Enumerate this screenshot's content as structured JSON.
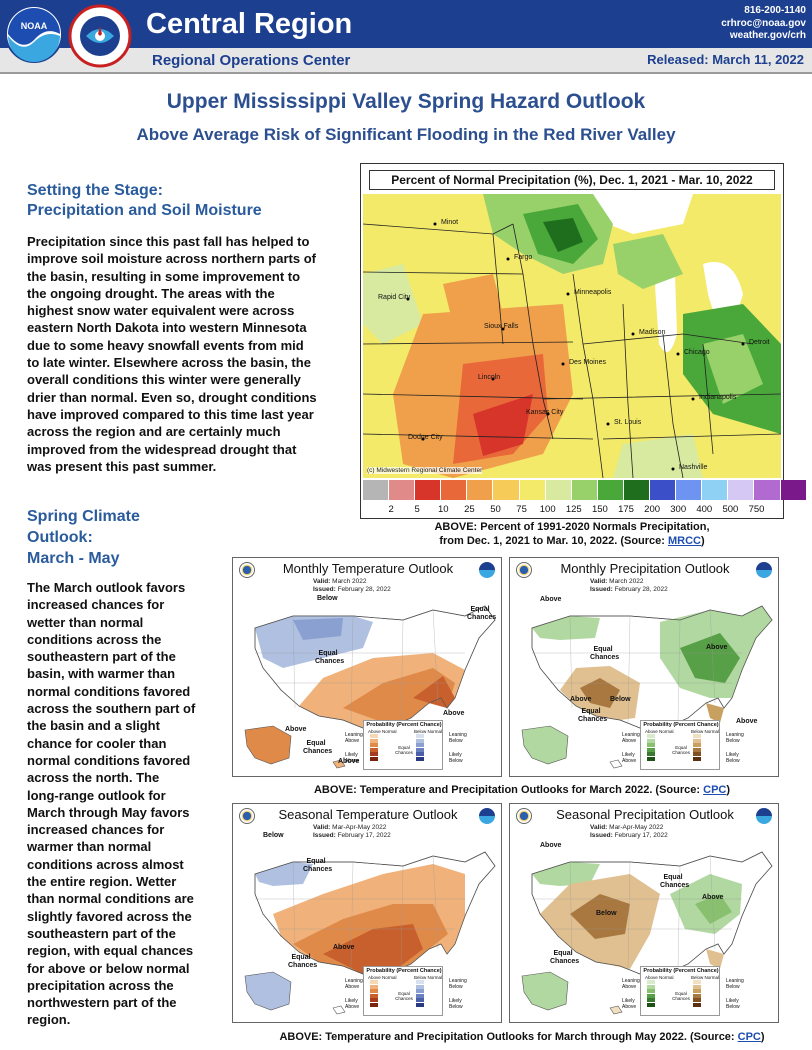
{
  "header": {
    "agency_logo": "noaa-logo",
    "service_logo": "national-weather-service-logo",
    "region_title": "Central Region",
    "center_name": "Regional Operations Center",
    "phone": "816-200-1140",
    "email": "crhroc@noaa.gov",
    "website": "weather.gov/crh",
    "released": "Released:  March 11, 2022",
    "colors": {
      "banner": "#1c3f8f",
      "subbar": "#e6e6e6"
    }
  },
  "title": "Upper Mississippi Valley Spring Hazard Outlook",
  "subtitle": "Above Average Risk of Significant Flooding in the Red River Valley",
  "section1": {
    "heading_line1": "Setting the Stage:",
    "heading_line2": "Precipitation and Soil Moisture",
    "lines": [
      "Precipitation since this past fall has helped to",
      "improve soil moisture across northern parts of",
      "the basin, resulting in some improvement to",
      "the ongoing drought. The areas with the",
      "highest snow water equivalent were across",
      "eastern North Dakota into western Minnesota",
      "due to some heavy snowfall events from mid",
      "to late winter. Elsewhere across the basin, the",
      "overall conditions this winter were generally",
      "drier than normal. Even so, drought conditions",
      "have improved compared to this time last year",
      "across the region and are certainly much",
      "improved from the widespread drought that",
      "was present this past summer."
    ]
  },
  "section2": {
    "heading_line1": "Spring Climate",
    "heading_line2": "Outlook:",
    "heading_line3": "March - May",
    "lines": [
      "The March outlook favors",
      "increased chances for",
      "wetter than normal",
      "conditions across the",
      "southeastern part of the",
      "basin, with warmer than",
      "normal conditions favored",
      "across the southern part of",
      "the basin and a slight",
      "chance for cooler than",
      "normal conditions favored",
      "across the north. The",
      "long-range outlook for",
      "March through May favors",
      "increased chances for",
      "warmer than normal",
      "conditions across almost",
      "the entire region. Wetter",
      "than normal conditions are",
      "slightly favored across the",
      "southeastern part of the",
      "region, with equal chances",
      "for above or below normal",
      "precipitation across the",
      "northwestern part of the",
      "region."
    ]
  },
  "precip_map": {
    "title": "Percent of Normal Precipitation (%), Dec. 1, 2021 - Mar. 10, 2022",
    "credit": "(c) Midwestern Regional Climate Center",
    "cities": [
      "Minot",
      "Fargo",
      "Rapid City",
      "Minneapolis",
      "Sioux Falls",
      "Madison",
      "Detroit",
      "Chicago",
      "Des Moines",
      "Lincoln",
      "Indianapolis",
      "Kansas City",
      "St. Louis",
      "Dodge City",
      "Nashville"
    ],
    "legend_labels": [
      "2",
      "5",
      "10",
      "25",
      "50",
      "75",
      "100",
      "125",
      "150",
      "175",
      "200",
      "300",
      "400",
      "500",
      "750"
    ],
    "legend_colors": [
      "#b5b5b5",
      "#e08a8a",
      "#d8352a",
      "#e8683a",
      "#f0a04a",
      "#f6cb57",
      "#f3ea6a",
      "#d7eaa0",
      "#98d16a",
      "#4aa83a",
      "#1e6e1e",
      "#3a4fc8",
      "#6c94f0",
      "#8fd0f5",
      "#d6c8f5",
      "#b06ad0",
      "#7a1a8a"
    ],
    "caption_line1": "ABOVE: Percent of 1991-2020 Normals Precipitation,",
    "caption_line2": "from Dec. 1, 2021 to Mar. 10, 2022.  (Source: ",
    "caption_link": "MRCC",
    "caption_end": ")"
  },
  "outlooks_top": {
    "temp": {
      "title": "Monthly Temperature Outlook",
      "valid_label": "Valid:",
      "valid": "March 2022",
      "issued_label": "Issued:",
      "issued": "February 28, 2022",
      "labels": {
        "below": "Below",
        "equal1": "Equal Chances",
        "equal2": "Equal Chances",
        "above": "Above",
        "above_ak": "Above",
        "equal_ak": "Equal Chances",
        "above_hi": "Above"
      }
    },
    "precip": {
      "title": "Monthly Precipitation Outlook",
      "valid_label": "Valid:",
      "valid": "March 2022",
      "issued_label": "Issued:",
      "issued": "February 28, 2022",
      "labels": {
        "above_nw": "Above",
        "equal1": "Equal Chances",
        "above_ne": "Above",
        "below_tx": "Below",
        "above_fl": "Above",
        "above_ak": "Above",
        "equal_ak": "Equal Chances"
      }
    }
  },
  "outlooks_bottom": {
    "temp": {
      "title": "Seasonal Temperature Outlook",
      "valid_label": "Valid:",
      "valid": "Mar-Apr-May 2022",
      "issued_label": "Issued:",
      "issued": "February 17, 2022",
      "labels": {
        "below": "Below",
        "equal1": "Equal Chances",
        "above": "Above",
        "equal_ak": "Equal Chances"
      }
    },
    "precip": {
      "title": "Seasonal Precipitation Outlook",
      "valid_label": "Valid:",
      "valid": "Mar-Apr-May 2022",
      "issued_label": "Issued:",
      "issued": "February 17, 2022",
      "labels": {
        "above_nw": "Above",
        "equal1": "Equal Chances",
        "below": "Below",
        "above_ne": "Above",
        "equal_ak": "Equal Chances"
      }
    }
  },
  "prob_legend": {
    "title": "Probability (Percent Chance)",
    "temp_left": "Above Normal",
    "temp_right": "Below Normal",
    "precip_left": "Above Normal",
    "precip_right": "Below Normal",
    "equal": "Equal Chances",
    "leaning_above": "Leaning Above",
    "leaning_below": "Leaning Below",
    "likely_above": "Likely Above",
    "likely_below": "Likely Below"
  },
  "caption_top": {
    "text": "ABOVE: Temperature and Precipitation Outlooks for March 2022.  (Source: ",
    "link": "CPC",
    "end": ")"
  },
  "caption_bottom": {
    "text": "ABOVE: Temperature and Precipitation Outlooks for March through May 2022.  (Source: ",
    "link": "CPC",
    "end": ")"
  }
}
